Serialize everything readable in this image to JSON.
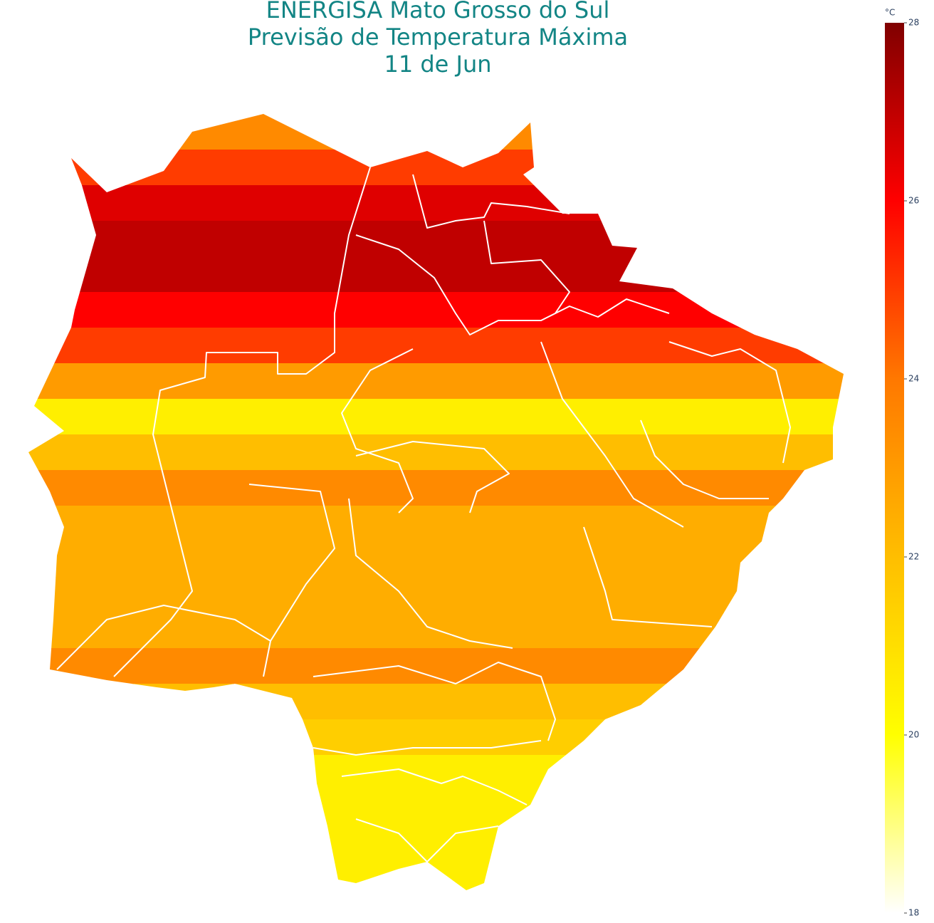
{
  "chart_data": {
    "type": "contour-map",
    "title": [
      "ENERGISA Mato Grosso do Sul",
      "Previsão de Temperatura Máxima",
      "11 de Jun"
    ],
    "bands": [
      23.5,
      25,
      26.5,
      27,
      27,
      26,
      25,
      23,
      20.5,
      22,
      23.5,
      22.5,
      22.5,
      22.5,
      22.5,
      23.5,
      22,
      21.5,
      20.5,
      20.5,
      20.5,
      20.5
    ],
    "colorbar": {
      "title": "°C",
      "lim": [
        18,
        28
      ],
      "ticks": [
        18,
        20,
        22,
        24,
        26,
        28
      ],
      "colorscale": [
        "#ffffff",
        "#ffff00",
        "#ffbe00",
        "#ff7800",
        "#ff0000",
        "#800000"
      ]
    }
  }
}
